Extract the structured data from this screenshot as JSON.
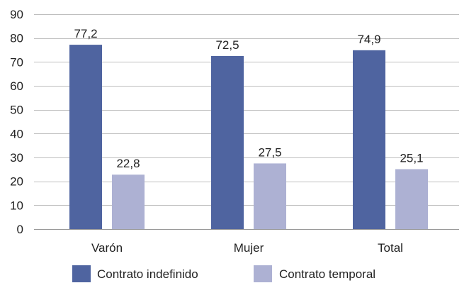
{
  "chart_data": {
    "type": "bar",
    "categories": [
      "Varón",
      "Mujer",
      "Total"
    ],
    "series": [
      {
        "name": "Contrato indefinido",
        "values": [
          77.2,
          72.5,
          74.9
        ],
        "labels": [
          "77,2",
          "72,5",
          "74,9"
        ],
        "color": "#4f64a0"
      },
      {
        "name": "Contrato temporal",
        "values": [
          22.8,
          27.5,
          25.1
        ],
        "labels": [
          "22,8",
          "27,5",
          "25,1"
        ],
        "color": "#adb1d3"
      }
    ],
    "ylim": [
      0,
      90
    ],
    "yticks": [
      0,
      10,
      20,
      30,
      40,
      50,
      60,
      70,
      80,
      90
    ],
    "grid": true,
    "legend_position": "bottom",
    "title": "",
    "xlabel": "",
    "ylabel": ""
  }
}
